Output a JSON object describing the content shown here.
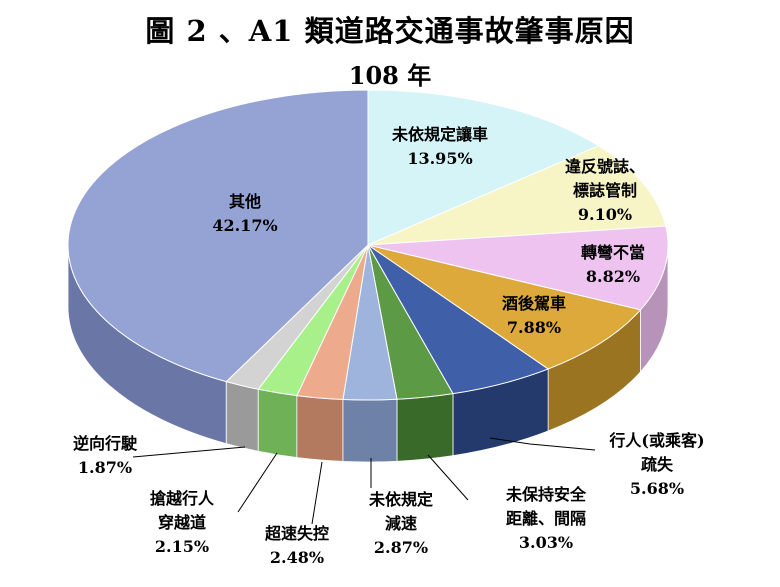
{
  "chart_data": {
    "type": "pie",
    "title": "圖 2 、A1 類道路交通事故肇事原因",
    "subtitle": "108 年",
    "slices": [
      {
        "name": "未依規定讓車",
        "label_lines": [
          "未依規定讓車",
          "13.95%"
        ],
        "value": 13.95,
        "color": "#d4f4f8",
        "side": "#9ec9cd"
      },
      {
        "name": "違反號誌、標誌管制",
        "label_lines": [
          "違反號誌、",
          "標誌管制",
          "9.10%"
        ],
        "value": 9.1,
        "color": "#f7f4c6",
        "side": "#cbc69a"
      },
      {
        "name": "轉彎不當",
        "label_lines": [
          "轉彎不當",
          "8.82%"
        ],
        "value": 8.82,
        "color": "#eec3f0",
        "side": "#b792b9"
      },
      {
        "name": "酒後駕車",
        "label_lines": [
          "酒後駕車",
          "7.88%"
        ],
        "value": 7.88,
        "color": "#dca93a",
        "side": "#9a7420"
      },
      {
        "name": "行人(或乘客)疏失",
        "label_lines": [
          "行人(或乘客)",
          "疏失",
          "5.68%"
        ],
        "value": 5.68,
        "color": "#3f5fa8",
        "side": "#243a6c"
      },
      {
        "name": "未保持安全距離、間隔",
        "label_lines": [
          "未保持安全",
          "距離、間隔",
          "3.03%"
        ],
        "value": 3.03,
        "color": "#5c9a45",
        "side": "#3a6a2a"
      },
      {
        "name": "未依規定減速",
        "label_lines": [
          "未依規定",
          "減速",
          "2.87%"
        ],
        "value": 2.87,
        "color": "#9fb4dc",
        "side": "#6d82a6"
      },
      {
        "name": "超速失控",
        "label_lines": [
          "超速失控",
          "2.48%"
        ],
        "value": 2.48,
        "color": "#eeaa8c",
        "side": "#b47a60"
      },
      {
        "name": "搶越行人穿越道",
        "label_lines": [
          "搶越行人",
          "穿越道",
          "2.15%"
        ],
        "value": 2.15,
        "color": "#a8f08a",
        "side": "#6fb156"
      },
      {
        "name": "逆向行駛",
        "label_lines": [
          "逆向行駛",
          "1.87%"
        ],
        "value": 1.87,
        "color": "#d3d3d3",
        "side": "#9a9a9a"
      },
      {
        "name": "其他",
        "label_lines": [
          "其他",
          "42.17%"
        ],
        "value": 42.17,
        "color": "#95a3d4",
        "side": "#6a77a6"
      }
    ],
    "start": "12 o'clock",
    "direction": "clockwise",
    "style": "3d",
    "legend": "none"
  }
}
